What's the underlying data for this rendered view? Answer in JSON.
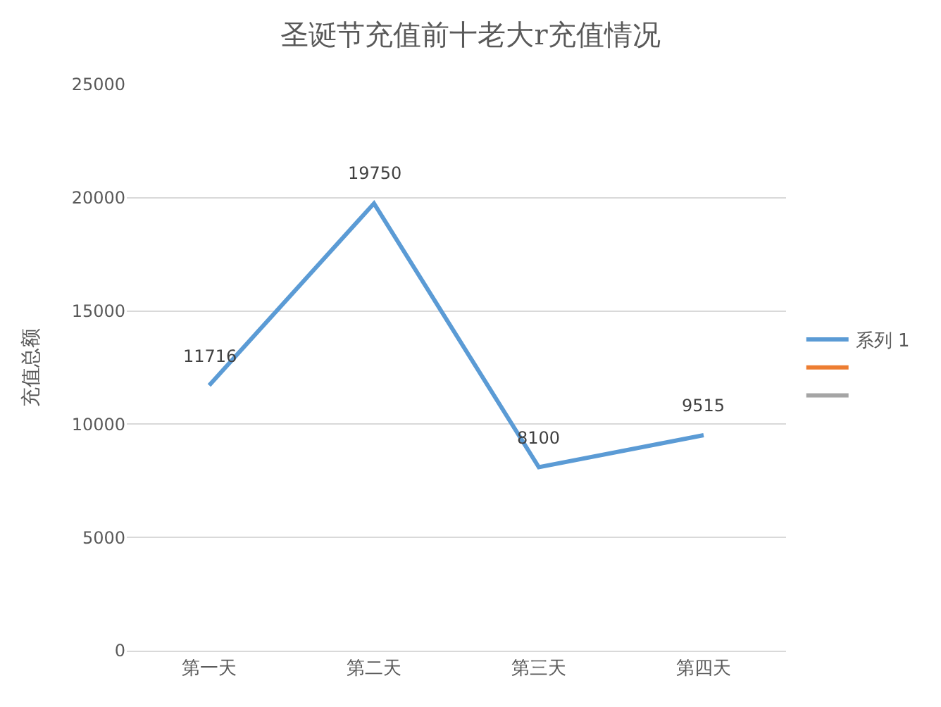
{
  "chart_data": {
    "type": "line",
    "title": "圣诞节充值前十老大r充值情况",
    "ylabel": "充值总额",
    "categories": [
      "第一天",
      "第二天",
      "第三天",
      "第四天"
    ],
    "series": [
      {
        "name": "系列 1",
        "color": "#5b9bd5",
        "values": [
          11716,
          19750,
          8100,
          9515
        ]
      },
      {
        "color": "#ed7d31",
        "values": [
          null,
          null,
          null,
          null
        ]
      },
      {
        "color": "#a5a5a5",
        "values": [
          null,
          null,
          null,
          null
        ]
      }
    ],
    "ylim": [
      0,
      25000
    ],
    "yticks": [
      0,
      5000,
      10000,
      15000,
      20000,
      25000
    ],
    "grid": "y",
    "legend": "right",
    "data_labels": true,
    "marker": "none",
    "line_style": "solid"
  }
}
